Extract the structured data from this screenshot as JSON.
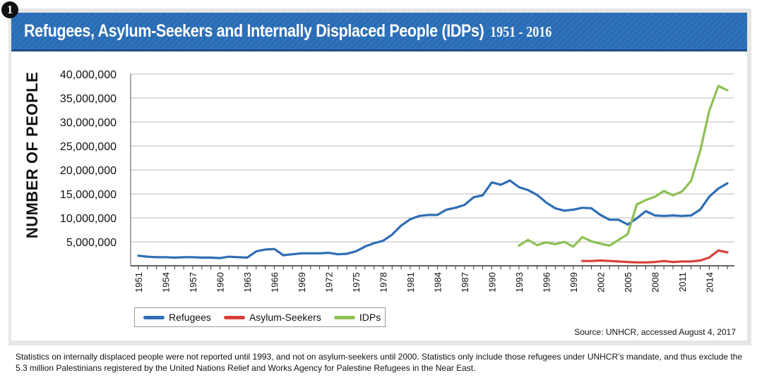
{
  "badge": "1",
  "title": {
    "main": "Refugees, Asylum-Seekers and Internally Displaced People (IDPs)",
    "years": "1951 - 2016"
  },
  "chart_data": {
    "type": "line",
    "ylabel": "NUMBER OF PEOPLE",
    "ylim": [
      0,
      40000000
    ],
    "y_ticks": [
      "5,000,000",
      "10,000,000",
      "15,000,000",
      "20,000,000",
      "25,000,000",
      "30,000,000",
      "35,000,000",
      "40,000,000"
    ],
    "x_tick_labels": [
      "1951",
      "1954",
      "1957",
      "1960",
      "1963",
      "1966",
      "1969",
      "1972",
      "1975",
      "1978",
      "1981",
      "1984",
      "1987",
      "1990",
      "1993",
      "1996",
      "1999",
      "2002",
      "2005",
      "2008",
      "2011",
      "2014"
    ],
    "xlim": [
      1951,
      2016
    ],
    "grid": true,
    "legend_position": "bottom-left",
    "series": [
      {
        "name": "Refugees",
        "color": "#2e6db4",
        "x": [
          1951,
          1952,
          1953,
          1954,
          1955,
          1956,
          1957,
          1958,
          1959,
          1960,
          1961,
          1962,
          1963,
          1964,
          1965,
          1966,
          1967,
          1968,
          1969,
          1970,
          1971,
          1972,
          1973,
          1974,
          1975,
          1976,
          1977,
          1978,
          1979,
          1980,
          1981,
          1982,
          1983,
          1984,
          1985,
          1986,
          1987,
          1988,
          1989,
          1990,
          1991,
          1992,
          1993,
          1994,
          1995,
          1996,
          1997,
          1998,
          1999,
          2000,
          2001,
          2002,
          2003,
          2004,
          2005,
          2006,
          2007,
          2008,
          2009,
          2010,
          2011,
          2012,
          2013,
          2014,
          2015,
          2016
        ],
        "y": [
          2100000,
          1900000,
          1800000,
          1800000,
          1700000,
          1800000,
          1800000,
          1700000,
          1700000,
          1600000,
          1900000,
          1800000,
          1700000,
          3000000,
          3400000,
          3500000,
          2200000,
          2400000,
          2600000,
          2600000,
          2600000,
          2700000,
          2400000,
          2500000,
          3000000,
          4000000,
          4700000,
          5200000,
          6500000,
          8400000,
          9700000,
          10400000,
          10600000,
          10600000,
          11700000,
          12100000,
          12700000,
          14300000,
          14700000,
          17400000,
          16900000,
          17800000,
          16400000,
          15800000,
          14800000,
          13200000,
          12000000,
          11500000,
          11700000,
          12100000,
          12000000,
          10600000,
          9600000,
          9600000,
          8600000,
          9900000,
          11400000,
          10500000,
          10400000,
          10500000,
          10400000,
          10500000,
          11700000,
          14400000,
          16100000,
          17200000
        ]
      },
      {
        "name": "Asylum-Seekers",
        "color": "#d9403a",
        "x": [
          2000,
          2001,
          2002,
          2003,
          2004,
          2005,
          2006,
          2007,
          2008,
          2009,
          2010,
          2011,
          2012,
          2013,
          2014,
          2015,
          2016
        ],
        "y": [
          1000000,
          1000000,
          1100000,
          1000000,
          900000,
          800000,
          700000,
          700000,
          800000,
          1000000,
          800000,
          900000,
          900000,
          1100000,
          1700000,
          3200000,
          2800000
        ]
      },
      {
        "name": "IDPs",
        "color": "#8cc152",
        "x": [
          1993,
          1994,
          1995,
          1996,
          1997,
          1998,
          1999,
          2000,
          2001,
          2002,
          2003,
          2004,
          2005,
          2006,
          2007,
          2008,
          2009,
          2010,
          2011,
          2012,
          2013,
          2014,
          2015,
          2016
        ],
        "y": [
          4200000,
          5400000,
          4300000,
          4900000,
          4500000,
          5000000,
          4000000,
          6000000,
          5100000,
          4600000,
          4200000,
          5400000,
          6600000,
          12800000,
          13700000,
          14400000,
          15600000,
          14700000,
          15500000,
          17700000,
          23900000,
          32300000,
          37500000,
          36600000
        ]
      }
    ]
  },
  "legend": {
    "refugees": "Refugees",
    "asylum": "Asylum-Seekers",
    "idps": "IDPs"
  },
  "source": "Source: UNHCR, accessed August 4, 2017",
  "footnote": "Statistics on internally displaced people were not reported until 1993, and not on asylum-seekers until 2000. Statistics only include those refugees under UNHCR’s mandate, and thus exclude the 5.3 million Palestinians registered by the United Nations Relief and Works Agency for Palestine Refugees in the Near East."
}
